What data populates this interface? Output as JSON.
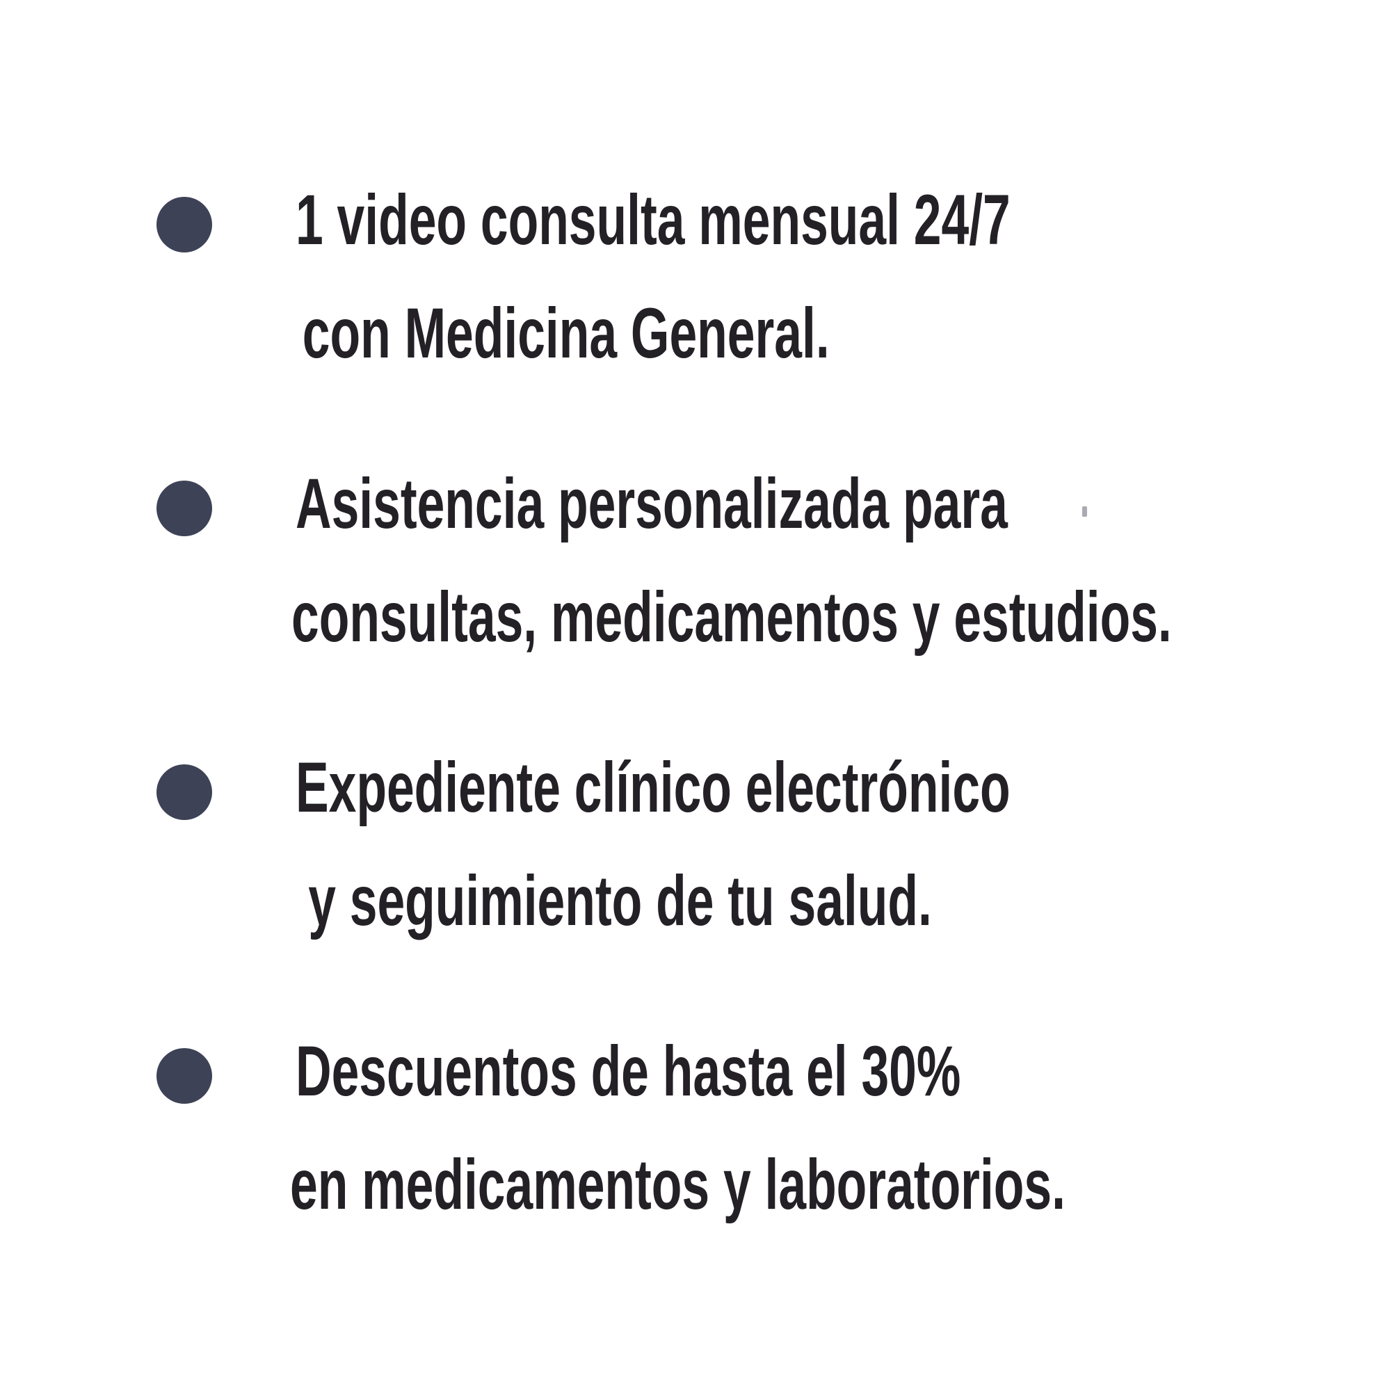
{
  "page": {
    "background": "#ffffff"
  },
  "list": {
    "bullet_color": "#3d4256",
    "text_color": "#232026",
    "items": [
      {
        "line1": "1 video consulta mensual 24/7",
        "line2": "con Medicina General."
      },
      {
        "line1": "Asistencia personalizada para",
        "line2": "consultas, medicamentos y estudios."
      },
      {
        "line1": "Expediente clínico electrónico",
        "line2": "y seguimiento de tu salud."
      },
      {
        "line1": "Descuentos de hasta el 30%",
        "line2": "en medicamentos y laboratorios."
      }
    ]
  },
  "artifact": {
    "color": "#a9aab2"
  }
}
